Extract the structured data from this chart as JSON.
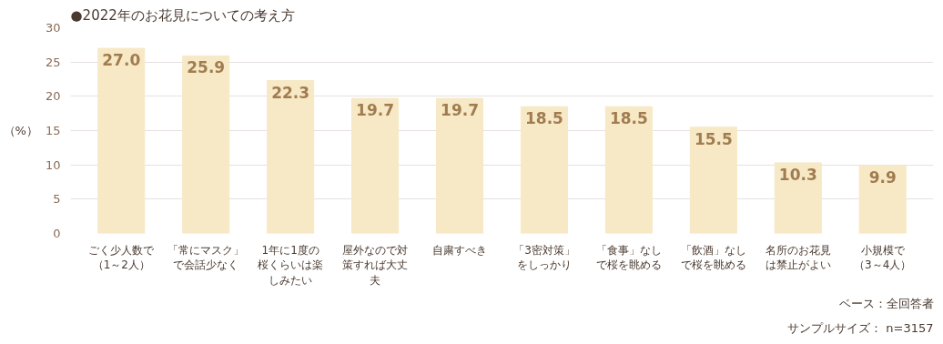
{
  "chart_data": {
    "type": "bar",
    "title": "●2022年のお花見についての考え方",
    "ylabel": "（%）",
    "categories": [
      "ごく少人数で（1～2人）",
      "「常にマスク」で会話少なく",
      "1年に1度の桜くらいは楽しみたい",
      "屋外なので対策すれば大丈夫",
      "自粛すべき",
      "「3密対策」をしっかり",
      "「食事」なしで桜を眺める",
      "「飲酒」なしで桜を眺める",
      "名所のお花見は禁止がよい",
      "小規模で（3～4人）"
    ],
    "values": [
      27.0,
      25.9,
      22.3,
      19.7,
      19.7,
      18.5,
      18.5,
      15.5,
      10.3,
      9.9
    ],
    "value_labels": [
      "27.0",
      "25.9",
      "22.3",
      "19.7",
      "19.7",
      "18.5",
      "18.5",
      "15.5",
      "10.3",
      "9.9"
    ],
    "color": "#f7e9c6",
    "ylim": [
      0,
      30
    ],
    "yticks": [
      0,
      5,
      10,
      15,
      20,
      25,
      30
    ],
    "grid": "y",
    "annotations": [
      "ベース：全回答者",
      "サンプルサイズ： n=3157"
    ]
  }
}
